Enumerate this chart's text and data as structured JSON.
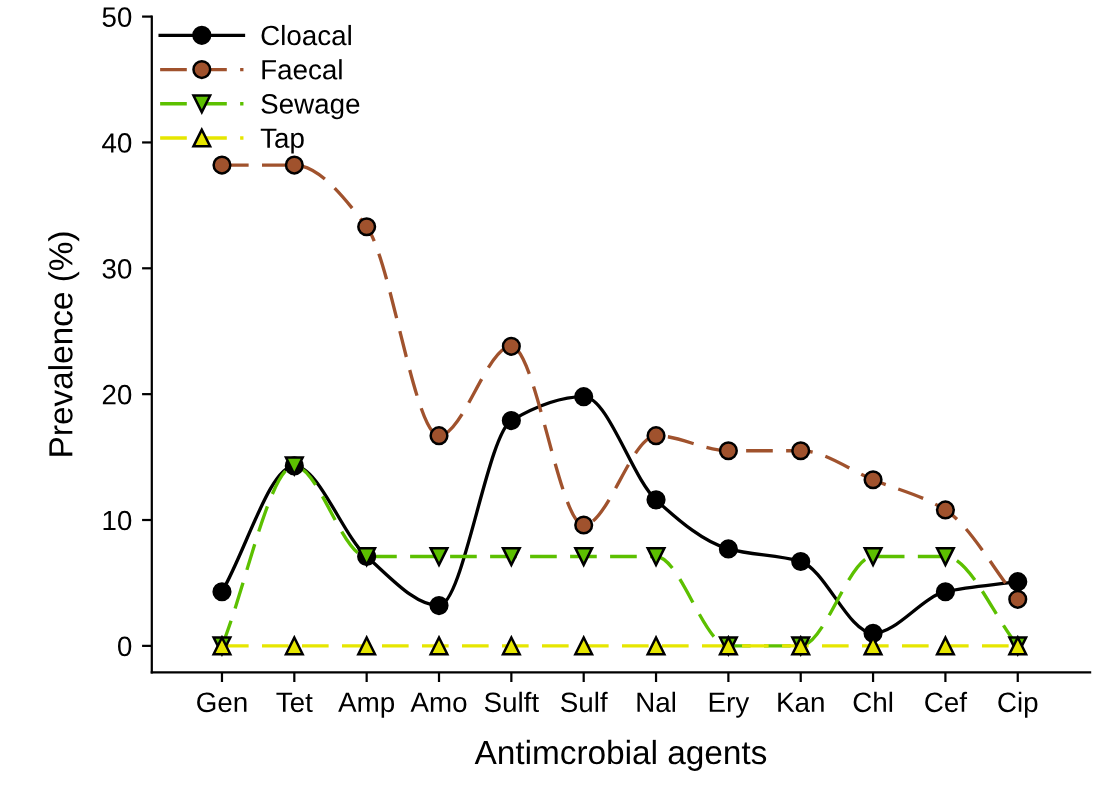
{
  "chart_data": {
    "type": "line",
    "xlabel": "Antimcrobial agents",
    "ylabel": "Prevalence (%)",
    "categories": [
      "Gen",
      "Tet",
      "Amp",
      "Amo",
      "Sulft",
      "Sulf",
      "Nal",
      "Ery",
      "Kan",
      "Chl",
      "Cef",
      "Cip"
    ],
    "series": [
      {
        "name": "Cloacal",
        "color": "#000000",
        "marker": "circle",
        "line_style": "solid",
        "values": [
          4.3,
          14.3,
          7.1,
          3.2,
          17.9,
          19.8,
          11.6,
          7.7,
          6.7,
          1.0,
          4.3,
          5.1
        ]
      },
      {
        "name": "Faecal",
        "color": "#a0522d",
        "marker": "circle",
        "line_style": "dashed",
        "values": [
          38.2,
          38.2,
          33.3,
          16.7,
          23.8,
          9.6,
          16.7,
          15.5,
          15.5,
          13.2,
          10.8,
          3.7
        ]
      },
      {
        "name": "Sewage",
        "color": "#5cc000",
        "marker": "triangle_down",
        "line_style": "dashed",
        "values": [
          0,
          14.3,
          7.1,
          7.1,
          7.1,
          7.1,
          7.1,
          0,
          0,
          7.1,
          7.1,
          0
        ]
      },
      {
        "name": "Tap",
        "color": "#e6e600",
        "marker": "triangle",
        "line_style": "dashed",
        "values": [
          0,
          0,
          0,
          0,
          0,
          0,
          0,
          0,
          0,
          0,
          0,
          0
        ]
      }
    ],
    "ylim": [
      -2.1,
      50
    ],
    "yticks": [
      0,
      10,
      20,
      30,
      40,
      50
    ],
    "grid": false,
    "legend": "top left"
  }
}
